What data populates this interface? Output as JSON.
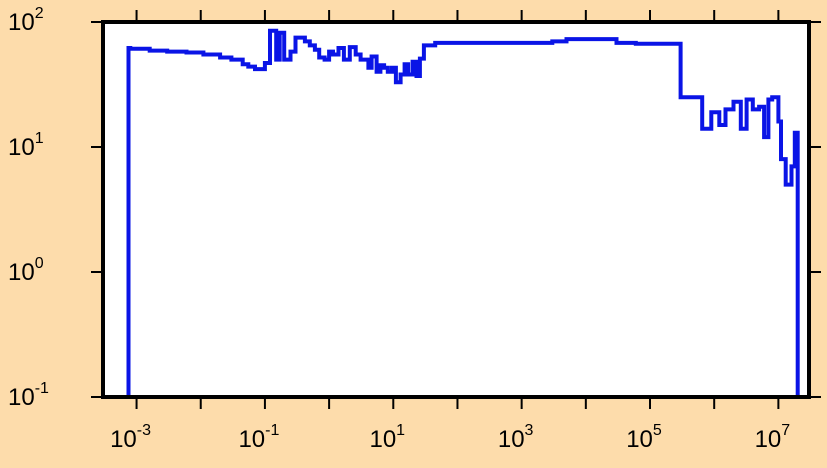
{
  "chart_data": {
    "type": "line",
    "xscale": "log",
    "yscale": "log",
    "xlim": [
      0.0003,
      30000000
    ],
    "ylim": [
      0.1,
      100
    ],
    "x_ticks": [
      {
        "base": "10",
        "exp": "-3",
        "value": 0.001
      },
      {
        "base": "10",
        "exp": "-1",
        "value": 0.1
      },
      {
        "base": "10",
        "exp": "1",
        "value": 10
      },
      {
        "base": "10",
        "exp": "3",
        "value": 1000
      },
      {
        "base": "10",
        "exp": "5",
        "value": 100000
      },
      {
        "base": "10",
        "exp": "7",
        "value": 10000000
      }
    ],
    "x_minor_ticks": [
      0.01,
      1,
      100,
      10000,
      1000000
    ],
    "y_ticks": [
      {
        "base": "10",
        "exp": "2",
        "value": 100
      },
      {
        "base": "10",
        "exp": "1",
        "value": 10
      },
      {
        "base": "10",
        "exp": "0",
        "value": 1
      },
      {
        "base": "10",
        "exp": "-1",
        "value": 0.1
      }
    ],
    "series": [
      {
        "color": "#0a14e6",
        "step": true,
        "x": [
          0.00075,
          0.00075,
          0.0008,
          0.0016,
          0.003,
          0.006,
          0.011,
          0.02,
          0.03,
          0.045,
          0.055,
          0.07,
          0.085,
          0.1,
          0.1,
          0.12,
          0.12,
          0.15,
          0.15,
          0.17,
          0.17,
          0.2,
          0.2,
          0.25,
          0.25,
          0.3,
          0.38,
          0.42,
          0.5,
          0.6,
          0.7,
          0.85,
          1.0,
          1.15,
          1.4,
          1.7,
          1.7,
          2.1,
          2.1,
          2.6,
          3.1,
          3.6,
          4.1,
          4.6,
          5.5,
          6.3,
          7.2,
          8.2,
          9.5,
          11,
          13,
          15,
          17,
          20,
          23,
          26,
          30,
          35,
          40,
          45,
          45,
          3000,
          5000,
          10000,
          30000,
          60000,
          200000,
          300000,
          600000,
          650000,
          900000,
          1200000,
          1500000,
          2000000,
          2600000,
          3200000,
          4000000,
          5000000,
          6000000,
          7000000,
          8000000,
          10000000,
          11000000,
          13000000,
          16000000,
          18000000,
          20000000
        ],
        "y": [
          0.1,
          62,
          61,
          59,
          58,
          57,
          55,
          52,
          50,
          46,
          44,
          42,
          42,
          47,
          47,
          85,
          85,
          50,
          50,
          82,
          82,
          50,
          50,
          58,
          58,
          75,
          75,
          70,
          65,
          60,
          52,
          50,
          58,
          55,
          62,
          62,
          50,
          50,
          63,
          55,
          50,
          50,
          43,
          53,
          40,
          45,
          43,
          40,
          43,
          33,
          38,
          46,
          38,
          48,
          37,
          51,
          65,
          65,
          65,
          65,
          68,
          70,
          73,
          73,
          68,
          67,
          67,
          25,
          25,
          14,
          19,
          15,
          20,
          23,
          14,
          24,
          20,
          21,
          12,
          24,
          25,
          16,
          8,
          5,
          7,
          13,
          0.1
        ]
      }
    ]
  }
}
